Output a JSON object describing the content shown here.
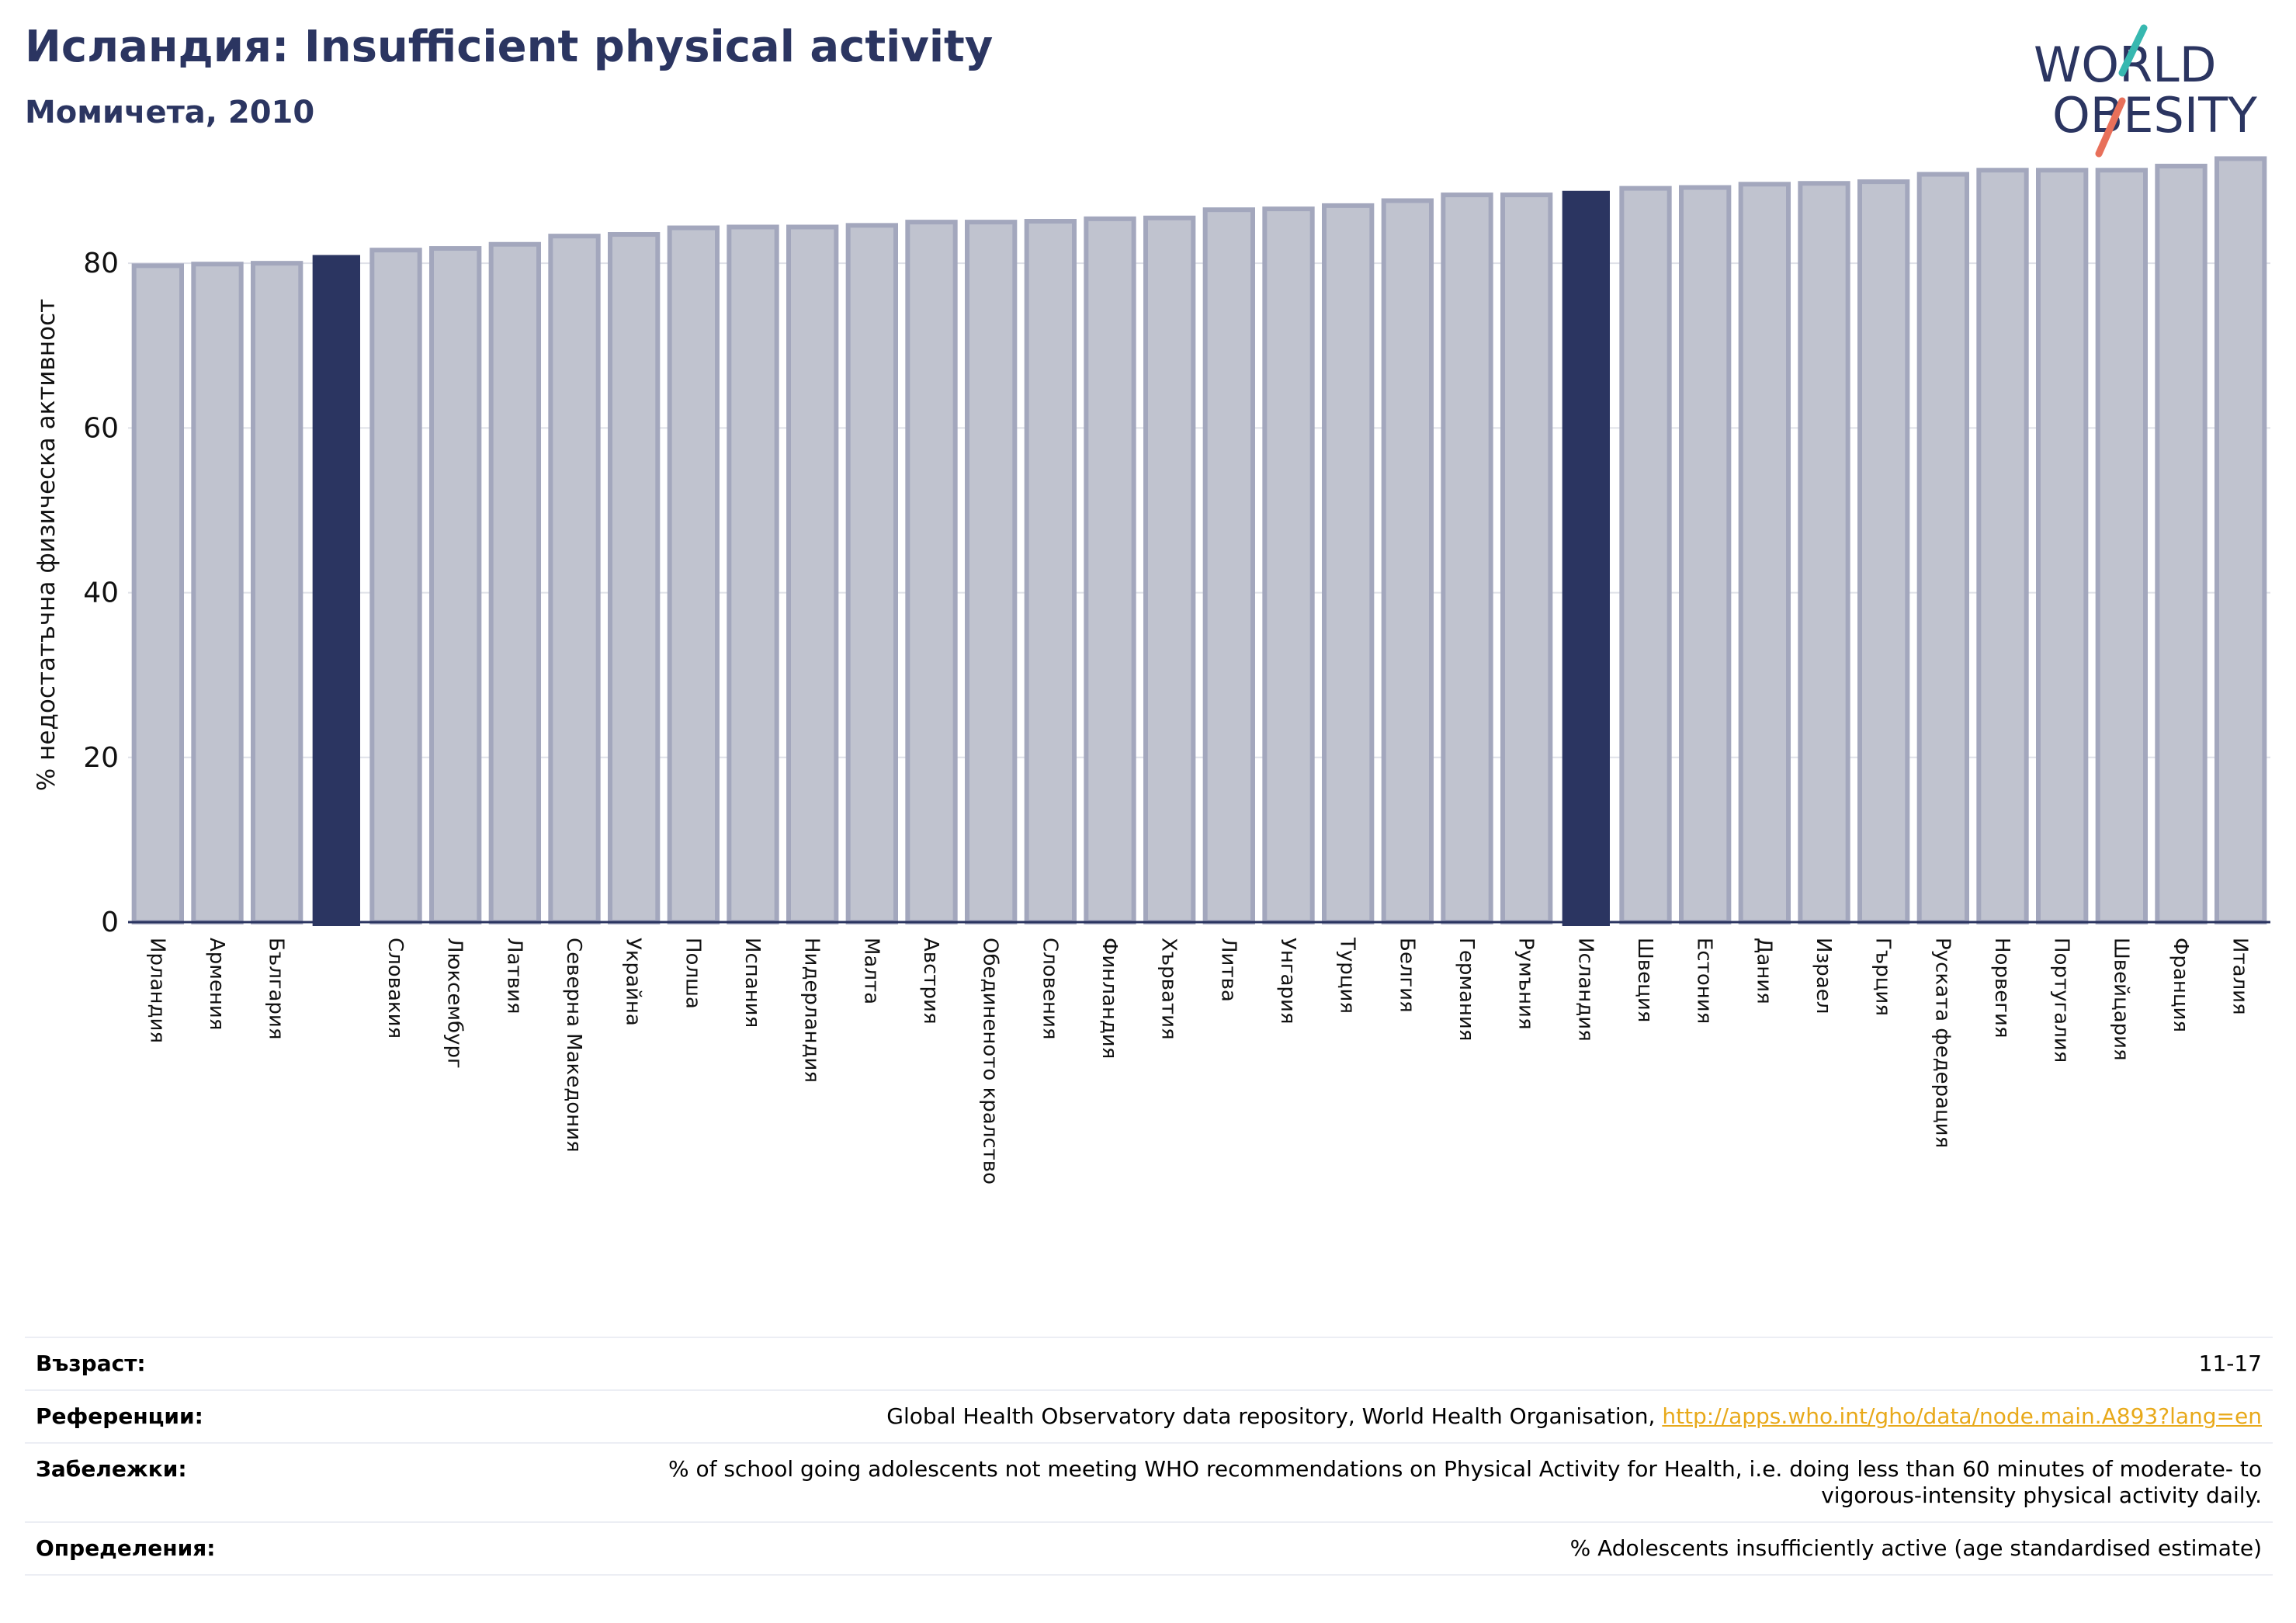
{
  "header": {
    "title": "Исландия: Insufficient physical activity",
    "subtitle": "Момичета, 2010"
  },
  "logo": {
    "line1": "WORLD",
    "line2": "OBESITY",
    "text_color": "#2b3561",
    "slash_colors": [
      "#37b8b0",
      "#e8705a"
    ]
  },
  "colors": {
    "bar_fill": "#c0c3cf",
    "bar_stroke": "#a3a7bd",
    "highlight": "#2b3561",
    "gridline": "#dfe1e8",
    "axis": "#2b3561"
  },
  "chart_data": {
    "type": "bar",
    "title": "",
    "xlabel": "",
    "ylabel": "% недостатъчна физическа активност",
    "ylim": [
      0,
      95
    ],
    "yticks": [
      0,
      20,
      40,
      60,
      80
    ],
    "grid": true,
    "categories": [
      "Ирландия",
      "Армения",
      "България",
      "",
      "Словакия",
      "Люксембург",
      "Латвия",
      "Северна Македония",
      "Украйна",
      "Полша",
      "Испания",
      "Нидерландия",
      "Малта",
      "Австрия",
      "Обединеното кралство",
      "Словения",
      "Финландия",
      "Хърватия",
      "Литва",
      "Унгария",
      "Турция",
      "Белгия",
      "Германия",
      "Румъния",
      "Исландия",
      "Швеция",
      "Естония",
      "Дания",
      "Израел",
      "Гърция",
      "Руската федерация",
      "Норвегия",
      "Португалия",
      "Швейцария",
      "Франция",
      "Италия"
    ],
    "values": [
      79.7,
      79.9,
      80.0,
      81.0,
      81.6,
      81.8,
      82.3,
      83.3,
      83.5,
      84.3,
      84.4,
      84.4,
      84.6,
      85.0,
      85.0,
      85.1,
      85.4,
      85.5,
      86.5,
      86.6,
      87.0,
      87.6,
      88.3,
      88.3,
      88.8,
      89.1,
      89.2,
      89.6,
      89.7,
      89.9,
      90.8,
      91.3,
      91.3,
      91.3,
      91.8,
      92.7
    ],
    "highlighted": [
      3,
      24
    ]
  },
  "info": [
    {
      "key": "Възраст:",
      "value": "11-17"
    },
    {
      "key": "Референции:",
      "value": "Global Health Observatory data repository, World Health Organisation, ",
      "link": "http://apps.who.int/gho/data/node.main.A893?lang=en"
    },
    {
      "key": "Забележки:",
      "value": "% of school going adolescents not meeting WHO recommendations on Physical Activity for Health, i.e. doing less than 60 minutes of moderate- to vigorous-intensity physical activity daily."
    },
    {
      "key": "Определения:",
      "value": "% Adolescents insufficiently active (age standardised estimate)"
    }
  ]
}
